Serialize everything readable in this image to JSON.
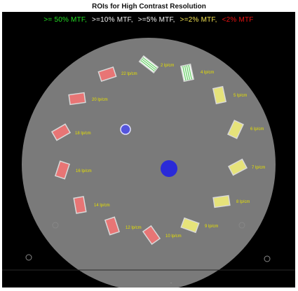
{
  "title": "ROIs for High Contrast Resolution",
  "legend": [
    {
      "text": ">= 50% MTF,",
      "color": "#22dd22"
    },
    {
      "text": ">=10% MTF,",
      "color": "#f2f2f2"
    },
    {
      "text": ">=5% MTF,",
      "color": "#f2f2f2"
    },
    {
      "text": ">=2% MTF,",
      "color": "#f0e050"
    },
    {
      "text": "<2% MTF",
      "color": "#ee1111"
    }
  ],
  "colors": {
    "phantom": "#7a7a7a",
    "label": "#e6e000",
    "green_roi": "#6fd26f",
    "yellow_roi": "#e6e37a",
    "red_roi": "#e87575",
    "roi_border": "#d8d8d8",
    "dot": "#2a2ad8",
    "small_dot": "#5555dd"
  },
  "rois": [
    {
      "label": "2 lp/cm",
      "class": "green",
      "bars": 4
    },
    {
      "label": "4 lp/cm",
      "class": "green",
      "bars": 5
    },
    {
      "label": "5 lp/cm",
      "class": "yellow",
      "bars": 0
    },
    {
      "label": "6 lp/cm",
      "class": "yellow",
      "bars": 0
    },
    {
      "label": "7 lp/cm",
      "class": "yellow",
      "bars": 0
    },
    {
      "label": "8 lp/cm",
      "class": "yellow",
      "bars": 0
    },
    {
      "label": "9 lp/cm",
      "class": "yellow",
      "bars": 0
    },
    {
      "label": "10 lp/cm",
      "class": "red",
      "bars": 0
    },
    {
      "label": "12 lp/cm",
      "class": "red",
      "bars": 0
    },
    {
      "label": "14 lp/cm",
      "class": "red",
      "bars": 0
    },
    {
      "label": "16 lp/cm",
      "class": "red",
      "bars": 0
    },
    {
      "label": "18 lp/cm",
      "class": "red",
      "bars": 0
    },
    {
      "label": "20 lp/cm",
      "class": "red",
      "bars": 0
    },
    {
      "label": "22 lp/cm",
      "class": "red",
      "bars": 0
    }
  ],
  "footer_mark": "-"
}
